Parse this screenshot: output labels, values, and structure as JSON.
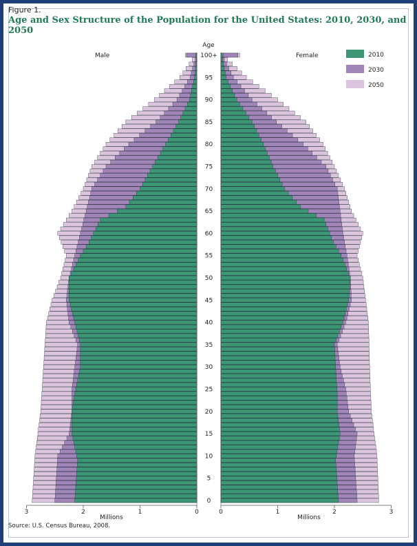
{
  "figure": {
    "label": "Figure 1.",
    "title": "Age and Sex Structure of the Population for the United States: 2010, 2030, and 2050",
    "source": "Source: U.S. Census Bureau, 2008."
  },
  "chart_data": {
    "type": "bar",
    "orientation": "population-pyramid",
    "side_labels": {
      "left": "Male",
      "right": "Female"
    },
    "center_axis_label": "Age",
    "xlabel": "Millions",
    "x_ticks": [
      0,
      1,
      2,
      3
    ],
    "age_tick_labels": [
      "0",
      "5",
      "10",
      "15",
      "20",
      "25",
      "30",
      "35",
      "40",
      "45",
      "50",
      "55",
      "60",
      "65",
      "70",
      "75",
      "80",
      "85",
      "90",
      "95",
      "100+"
    ],
    "xlim": [
      0,
      3
    ],
    "legend_position": "top-right",
    "colors": {
      "2010": "#3d9673",
      "2030": "#a184b8",
      "2050": "#dcc4dc"
    },
    "series": [
      {
        "name": "2010",
        "anchors": [
          {
            "age": 0,
            "male": 2.15,
            "female": 2.07
          },
          {
            "age": 9,
            "male": 2.1,
            "female": 2.02
          },
          {
            "age": 15,
            "male": 2.2,
            "female": 2.1
          },
          {
            "age": 20,
            "male": 2.2,
            "female": 2.05
          },
          {
            "age": 24,
            "male": 2.15,
            "female": 2.05
          },
          {
            "age": 30,
            "male": 2.05,
            "female": 2.02
          },
          {
            "age": 35,
            "male": 2.05,
            "female": 2.0
          },
          {
            "age": 40,
            "male": 2.15,
            "female": 2.15
          },
          {
            "age": 45,
            "male": 2.25,
            "female": 2.25
          },
          {
            "age": 50,
            "male": 2.25,
            "female": 2.28
          },
          {
            "age": 55,
            "male": 2.05,
            "female": 2.12
          },
          {
            "age": 58,
            "male": 1.9,
            "female": 1.98
          },
          {
            "age": 63,
            "male": 1.7,
            "female": 1.82
          },
          {
            "age": 66,
            "male": 1.25,
            "female": 1.4
          },
          {
            "age": 70,
            "male": 1.0,
            "female": 1.12
          },
          {
            "age": 75,
            "male": 0.78,
            "female": 0.92
          },
          {
            "age": 80,
            "male": 0.55,
            "female": 0.75
          },
          {
            "age": 85,
            "male": 0.32,
            "female": 0.55
          },
          {
            "age": 90,
            "male": 0.13,
            "female": 0.28
          },
          {
            "age": 95,
            "male": 0.04,
            "female": 0.09
          },
          {
            "age": 99,
            "male": 0.01,
            "female": 0.03
          },
          {
            "age": 100,
            "male": 0.02,
            "female": 0.04
          }
        ]
      },
      {
        "name": "2030",
        "anchors": [
          {
            "age": 0,
            "male": 2.5,
            "female": 2.4
          },
          {
            "age": 10,
            "male": 2.45,
            "female": 2.35
          },
          {
            "age": 15,
            "male": 2.25,
            "female": 2.4
          },
          {
            "age": 20,
            "male": 2.2,
            "female": 2.25
          },
          {
            "age": 25,
            "male": 2.2,
            "female": 2.2
          },
          {
            "age": 30,
            "male": 2.15,
            "female": 2.1
          },
          {
            "age": 35,
            "male": 2.1,
            "female": 2.05
          },
          {
            "age": 40,
            "male": 2.25,
            "female": 2.2
          },
          {
            "age": 45,
            "male": 2.3,
            "female": 2.3
          },
          {
            "age": 50,
            "male": 2.25,
            "female": 2.28
          },
          {
            "age": 55,
            "male": 2.15,
            "female": 2.22
          },
          {
            "age": 60,
            "male": 2.05,
            "female": 2.15
          },
          {
            "age": 65,
            "male": 1.95,
            "female": 2.1
          },
          {
            "age": 70,
            "male": 1.85,
            "female": 2.05
          },
          {
            "age": 75,
            "male": 1.6,
            "female": 1.85
          },
          {
            "age": 80,
            "male": 1.2,
            "female": 1.45
          },
          {
            "age": 85,
            "male": 0.72,
            "female": 0.98
          },
          {
            "age": 90,
            "male": 0.35,
            "female": 0.55
          },
          {
            "age": 95,
            "male": 0.12,
            "female": 0.22
          },
          {
            "age": 99,
            "male": 0.03,
            "female": 0.06
          },
          {
            "age": 100,
            "male": 0.18,
            "female": 0.3
          }
        ]
      },
      {
        "name": "2050",
        "anchors": [
          {
            "age": 0,
            "male": 2.9,
            "female": 2.78
          },
          {
            "age": 10,
            "male": 2.85,
            "female": 2.75
          },
          {
            "age": 20,
            "male": 2.75,
            "female": 2.65
          },
          {
            "age": 30,
            "male": 2.7,
            "female": 2.62
          },
          {
            "age": 40,
            "male": 2.65,
            "female": 2.6
          },
          {
            "age": 45,
            "male": 2.55,
            "female": 2.55
          },
          {
            "age": 50,
            "male": 2.4,
            "female": 2.5
          },
          {
            "age": 55,
            "male": 2.3,
            "female": 2.4
          },
          {
            "age": 60,
            "male": 2.45,
            "female": 2.5
          },
          {
            "age": 65,
            "male": 2.2,
            "female": 2.3
          },
          {
            "age": 70,
            "male": 2.0,
            "female": 2.18
          },
          {
            "age": 75,
            "male": 1.85,
            "female": 2.0
          },
          {
            "age": 80,
            "male": 1.6,
            "female": 1.8
          },
          {
            "age": 85,
            "male": 1.25,
            "female": 1.5
          },
          {
            "age": 90,
            "male": 0.75,
            "female": 1.0
          },
          {
            "age": 95,
            "male": 0.3,
            "female": 0.45
          },
          {
            "age": 99,
            "male": 0.08,
            "female": 0.12
          },
          {
            "age": 100,
            "male": 0.2,
            "female": 0.33
          }
        ]
      }
    ]
  }
}
